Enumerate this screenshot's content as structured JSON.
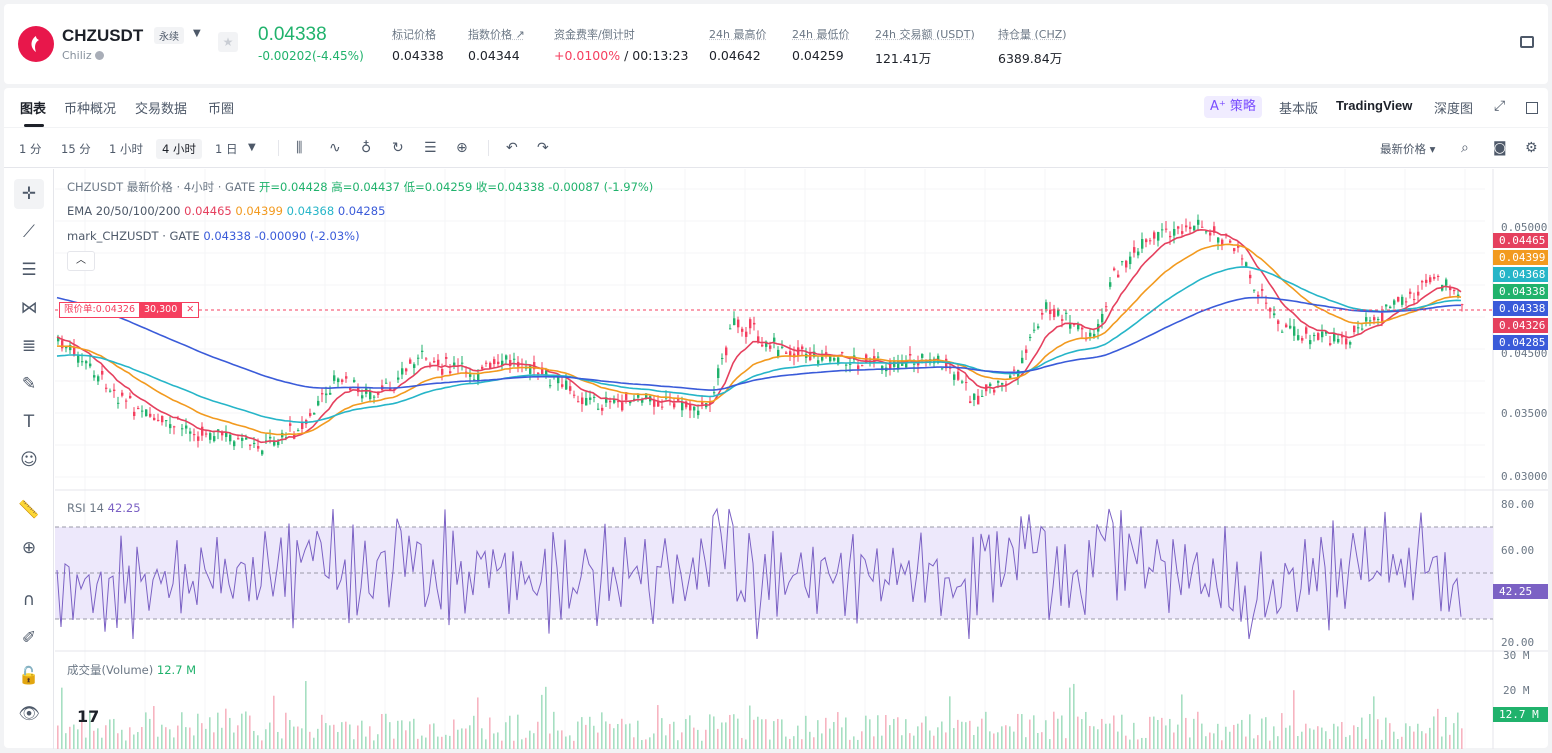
{
  "header": {
    "symbol": "CHZUSDT",
    "tag": "永续",
    "name": "Chiliz",
    "price": "0.04338",
    "change": "-0.00202(-4.45%)",
    "stats": [
      {
        "label": "标记价格",
        "value": "0.04338"
      },
      {
        "label": "指数价格 ↗",
        "value": "0.04344"
      },
      {
        "label": "资金费率/倒计时",
        "value_red": "+0.0100%",
        "value": " / 00:13:23"
      },
      {
        "label": "24h 最高价",
        "value": "0.04642"
      },
      {
        "label": "24h 最低价",
        "value": "0.04259"
      },
      {
        "label": "24h 交易额 (USDT)",
        "value": "121.41万"
      },
      {
        "label": "持仓量 (CHZ)",
        "value": "6389.84万"
      }
    ]
  },
  "tabs": [
    "图表",
    "币种概况",
    "交易数据",
    "币圈"
  ],
  "right_tabs": {
    "ai": "策略",
    "basic": "基本版",
    "tv": "TradingView",
    "depth": "深度图"
  },
  "timeframes": [
    "1 分",
    "15 分",
    "1 小时",
    "4 小时",
    "1 日"
  ],
  "price_type": "最新价格",
  "legend": {
    "title": "CHZUSDT 最新价格 · 4小时 · GATE",
    "ohlc": "开=0.04428 高=0.04437 低=0.04259 收=0.04338 -0.00087 (-1.97%)",
    "ema_label": "EMA 20/50/100/200",
    "ema_values": [
      "0.04465",
      "0.04399",
      "0.04368",
      "0.04285"
    ],
    "mark_label": "mark_CHZUSDT · GATE",
    "mark_values": "0.04338 -0.00090 (-2.03%)"
  },
  "order": {
    "label": "限价单:0.04326",
    "qty": "30,300",
    "close": "✕"
  },
  "price_axis": [
    "0.05000",
    "0.04500",
    "0.03500",
    "0.03000"
  ],
  "price_tags": [
    {
      "v": "0.04465",
      "c": "#e5405e"
    },
    {
      "v": "0.04399",
      "c": "#f29a1f"
    },
    {
      "v": "0.04368",
      "c": "#26b5c8"
    },
    {
      "v": "0.04338",
      "c": "#20b26c"
    },
    {
      "v": "0.04338",
      "c": "#3a5bd9"
    },
    {
      "v": "0.04326",
      "c": "#e5405e"
    },
    {
      "v": "0.04285",
      "c": "#3a5bd9"
    }
  ],
  "rsi": {
    "label": "RSI 14",
    "value": "42.25",
    "axis": [
      "80.00",
      "60.00",
      "20.00"
    ]
  },
  "volume": {
    "label": "成交量(Volume)",
    "value": "12.7 M",
    "axis": [
      "30 M",
      "20 M"
    ],
    "tag": "12.7 M"
  },
  "colors": {
    "up": "#20b26c",
    "down": "#f53f5f",
    "ema20": "#e5405e",
    "ema50": "#f29a1f",
    "ema100": "#26b5c8",
    "ema200": "#3a5bd9",
    "rsi": "#7b61c4"
  }
}
